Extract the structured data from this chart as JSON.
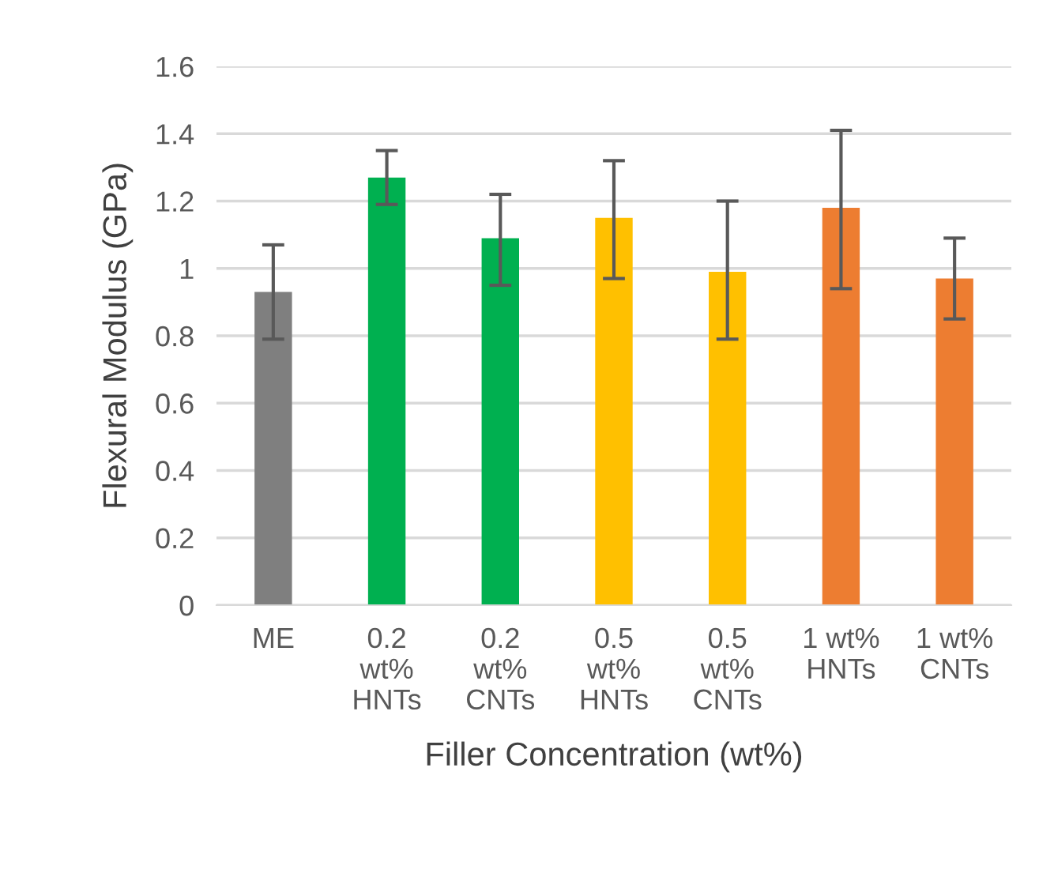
{
  "chart_data": {
    "type": "bar",
    "xlabel": "Filler Concentration (wt%)",
    "ylabel": "Flexural Modulus (GPa)",
    "categories": [
      "ME",
      "0.2\nwt%\nHNTs",
      "0.2\nwt%\nCNTs",
      "0.5\nwt%\nHNTs",
      "0.5\nwt%\nCNTs",
      "1 wt%\nHNTs",
      "1 wt%\nCNTs"
    ],
    "values": [
      0.93,
      1.27,
      1.09,
      1.15,
      0.99,
      1.18,
      0.97
    ],
    "colors": [
      "#7f7f7f",
      "#00b050",
      "#00b050",
      "#ffc000",
      "#ffc000",
      "#ed7d31",
      "#ed7d31"
    ],
    "errors": [
      [
        0.79,
        1.07
      ],
      [
        1.19,
        1.35
      ],
      [
        0.95,
        1.22
      ],
      [
        0.97,
        1.32
      ],
      [
        0.79,
        1.2
      ],
      [
        0.94,
        1.41
      ],
      [
        0.85,
        1.09
      ]
    ],
    "ylim": [
      0,
      1.6
    ],
    "yticks": [
      0,
      0.2,
      0.4,
      0.6,
      0.8,
      1,
      1.2,
      1.4,
      1.6
    ],
    "grid": "y",
    "legend": false
  }
}
